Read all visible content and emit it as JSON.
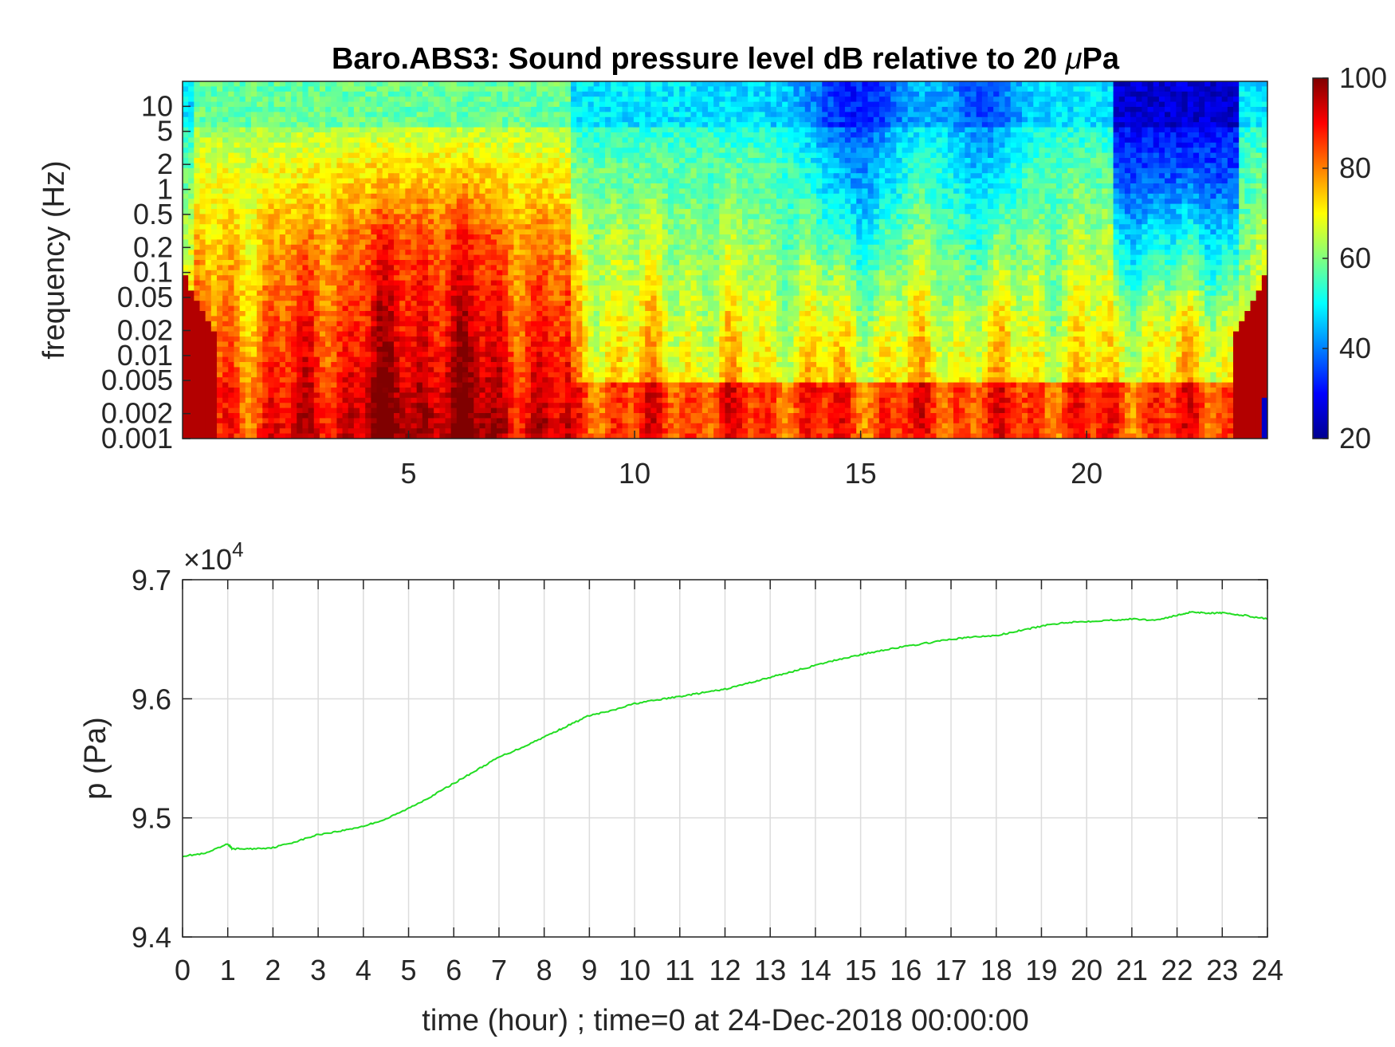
{
  "chart_data": [
    {
      "type": "heatmap",
      "title_prefix": "Baro.ABS3: Sound pressure level dB relative to 20 ",
      "title_mu": "μ",
      "title_suffix": "Pa",
      "ylabel": "frequency (Hz)",
      "xlabel": "",
      "ylim": [
        0.001,
        20
      ],
      "yscale": "log",
      "xlim": [
        0,
        24
      ],
      "x_ticks": [
        "5",
        "10",
        "15",
        "20"
      ],
      "y_ticks": [
        "10",
        "5",
        "2",
        "1",
        "0.5",
        "0.2",
        "0.1",
        "0.05",
        "0.02",
        "0.01",
        "0.005",
        "0.002",
        "0.001"
      ],
      "colorbar": {
        "colormap": "jet",
        "range": [
          20,
          100
        ],
        "ticks": [
          "100",
          "80",
          "60",
          "40",
          "20"
        ]
      },
      "colors": [
        "#00008f",
        "#0000ff",
        "#00ffff",
        "#ffff00",
        "#ff0000",
        "#800000"
      ]
    },
    {
      "type": "line",
      "ylabel": "p (Pa)",
      "xlabel": "time (hour) ; time=0 at 24-Dec-2018 00:00:00",
      "xlim": [
        0,
        24
      ],
      "ylim": [
        94000,
        97000
      ],
      "multiplier_prefix": "×10",
      "multiplier_exp": "4",
      "x_ticks": [
        "0",
        "1",
        "2",
        "3",
        "4",
        "5",
        "6",
        "7",
        "8",
        "9",
        "10",
        "11",
        "12",
        "13",
        "14",
        "15",
        "16",
        "17",
        "18",
        "19",
        "20",
        "21",
        "22",
        "23",
        "24"
      ],
      "y_ticks": [
        "9.7",
        "9.6",
        "9.5",
        "9.4"
      ],
      "grid": true,
      "color": "#22dd22",
      "series": [
        {
          "x": [
            0,
            0.5,
            1,
            1.1,
            1.5,
            2,
            2.5,
            3,
            3.5,
            4,
            4.5,
            5,
            5.5,
            6,
            6.5,
            7,
            7.5,
            8,
            8.5,
            9,
            9.5,
            10,
            10.5,
            11,
            11.5,
            12,
            12.5,
            13,
            13.5,
            14,
            14.5,
            15,
            15.5,
            16,
            16.5,
            17,
            17.5,
            18,
            18.5,
            19,
            19.5,
            20,
            20.5,
            21,
            21.5,
            22,
            22.3,
            22.7,
            23,
            23.5,
            24
          ],
          "y": [
            94680,
            94700,
            94780,
            94740,
            94740,
            94750,
            94800,
            94860,
            94890,
            94930,
            94990,
            95080,
            95180,
            95290,
            95400,
            95510,
            95590,
            95680,
            95770,
            95860,
            95900,
            95960,
            95990,
            96020,
            96050,
            96080,
            96130,
            96180,
            96230,
            96280,
            96330,
            96370,
            96410,
            96440,
            96470,
            96500,
            96520,
            96530,
            96570,
            96610,
            96640,
            96650,
            96660,
            96670,
            96660,
            96700,
            96730,
            96720,
            96720,
            96700,
            96670
          ]
        }
      ]
    }
  ]
}
